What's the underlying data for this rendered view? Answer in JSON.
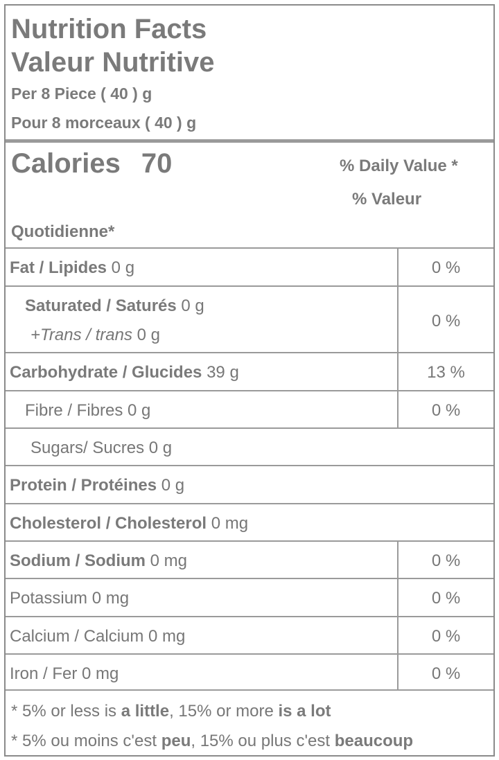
{
  "header": {
    "title_en": "Nutrition Facts",
    "title_fr": "Valeur Nutritive",
    "serving_en": "Per 8 Piece ( 40 ) g",
    "serving_fr": "Pour 8 morceaux ( 40 ) g"
  },
  "calories": {
    "label": "Calories",
    "value": "70",
    "dv_line1": "% Daily Value *",
    "dv_line2": "% Valeur",
    "dv_line3": "Quotidienne*"
  },
  "nutrients": [
    {
      "bold": "Fat / Lipides",
      "amount": " 0 g",
      "pct": "0 %"
    },
    {
      "bold": "Saturated / Saturés",
      "amount": " 0 g",
      "sub_italic": "+Trans / trans",
      "sub_amount": " 0 g",
      "pct": "0 %"
    },
    {
      "bold": "Carbohydrate / Glucides",
      "amount": " 39 g",
      "pct": "13 %"
    },
    {
      "plain": "Fibre / Fibres 0 g",
      "pct": "0 %"
    },
    {
      "plain": "Sugars/ Sucres 0 g"
    },
    {
      "bold": "Protein / Protéines",
      "amount": " 0 g"
    },
    {
      "bold": "Cholesterol / Cholesterol",
      "amount": " 0 mg"
    },
    {
      "bold": "Sodium / Sodium",
      "amount": " 0 mg",
      "pct": "0 %"
    },
    {
      "plain": "Potassium 0 mg",
      "pct": "0 %"
    },
    {
      "plain": "Calcium / Calcium 0 mg",
      "pct": "0 %"
    },
    {
      "plain": "Iron / Fer 0 mg",
      "pct": "0 %"
    }
  ],
  "footnote": {
    "en_a": "* 5% or less is ",
    "en_b": "a little",
    "en_c": ", 15% or more ",
    "en_d": "is a lot",
    "fr_a": "* 5% ou moins c'est ",
    "fr_b": "peu",
    "fr_c": ", 15% ou plus c'est ",
    "fr_d": "beaucoup"
  }
}
